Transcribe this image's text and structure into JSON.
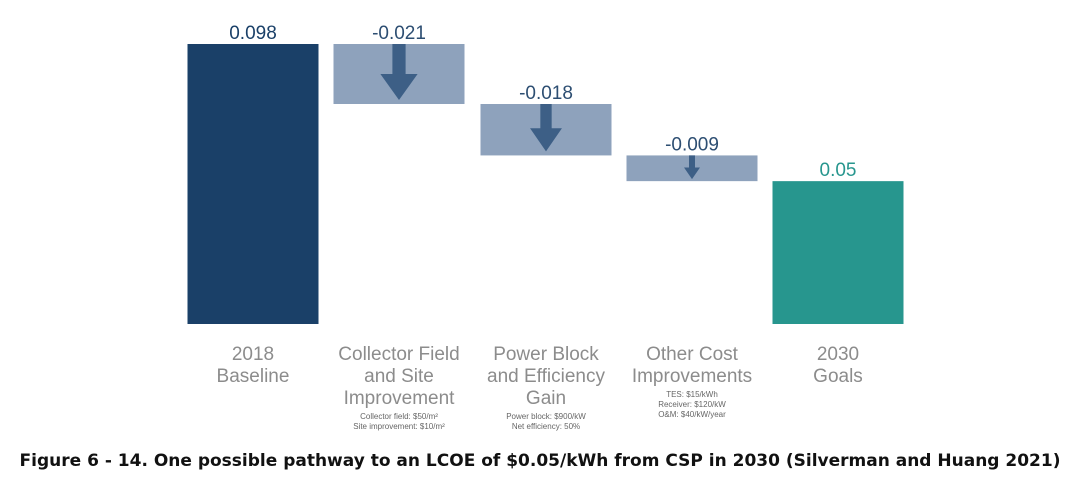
{
  "chart_data": {
    "type": "bar",
    "subtype": "waterfall",
    "categories": [
      [
        "2018",
        "Baseline"
      ],
      [
        "Collector Field",
        "and Site",
        "Improvement"
      ],
      [
        "Power Block",
        "and Efficiency",
        "Gain"
      ],
      [
        "Other Cost",
        "Improvements"
      ],
      [
        "2030",
        "Goals"
      ]
    ],
    "values": [
      0.098,
      -0.021,
      -0.018,
      -0.009,
      0.05
    ],
    "value_labels": [
      "0.098",
      "-0.021",
      "-0.018",
      "-0.009",
      "0.05"
    ],
    "kinds": [
      "total",
      "delta",
      "delta",
      "delta",
      "total"
    ],
    "notes": [
      [],
      [
        "Collector field: $50/m²",
        "Site improvement: $10/m²"
      ],
      [
        "Power block: $900/kW",
        "Net efficiency: 50%"
      ],
      [
        "TES: $15/kWh",
        "Receiver: $120/kW",
        "O&M: $40/kW/year"
      ],
      []
    ],
    "ylim": [
      0,
      0.098
    ],
    "grid": false,
    "colors": {
      "baseline": "#1a4068",
      "delta_fill": "#8ea2bc",
      "arrow": "#3d5f86",
      "goal": "#27968e",
      "baseline_label": "#1a4068",
      "delta_label": "#2d4e72",
      "goal_label": "#27968e"
    }
  },
  "caption": "Figure 6 - 14. One possible pathway to an LCOE of $0.05/kWh from CSP in 2030 (Silverman and Huang 2021)"
}
